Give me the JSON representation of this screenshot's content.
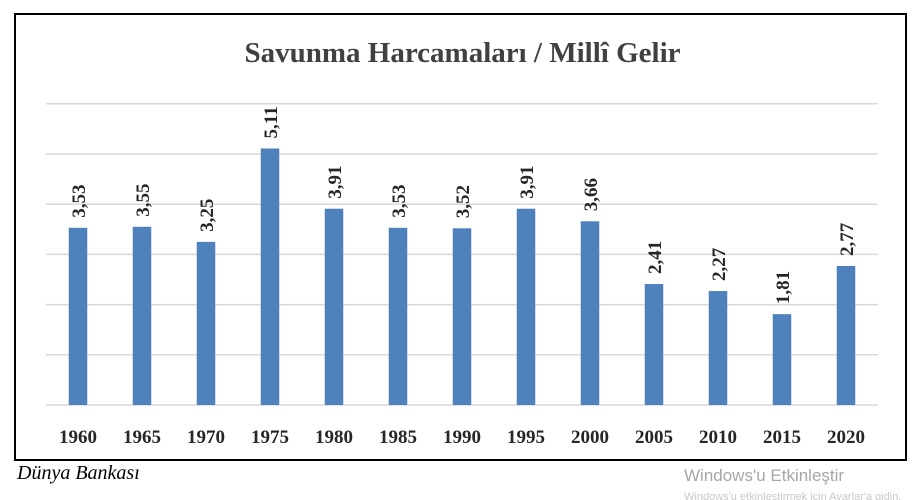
{
  "chart_data": {
    "type": "bar",
    "title": "Savunma  Harcamaları  / Millî Gelir",
    "xlabel": "",
    "ylabel": "",
    "categories": [
      "1960",
      "1965",
      "1970",
      "1975",
      "1980",
      "1985",
      "1990",
      "1995",
      "2000",
      "2005",
      "2010",
      "2015",
      "2020"
    ],
    "values": [
      3.53,
      3.55,
      3.25,
      5.11,
      3.91,
      3.53,
      3.52,
      3.91,
      3.66,
      2.41,
      2.27,
      1.81,
      2.77
    ],
    "data_labels": [
      "3,53",
      "3,55",
      "3,25",
      "5,11",
      "3,91",
      "3,53",
      "3,52",
      "3,91",
      "3,66",
      "2,41",
      "2,27",
      "1,81",
      "2,77"
    ],
    "ylim": [
      0,
      6
    ],
    "grid": true,
    "legend": "none",
    "colors": {
      "bar": "#4f81bd",
      "grid": "#d9d9d9",
      "text": "#262626",
      "title": "#404040"
    }
  },
  "source": "Dünya Bankası",
  "watermark": {
    "title": "Windows'u Etkinleştir",
    "subtitle": "Windows'u etkinleştirmek için Ayarlar'a gidin."
  }
}
